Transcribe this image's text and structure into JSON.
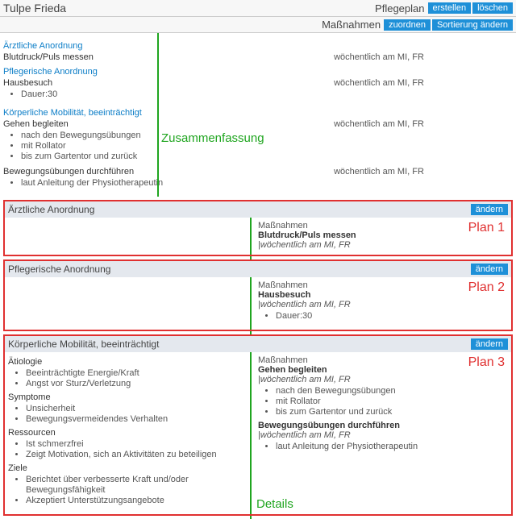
{
  "header": {
    "patient_name": "Tulpe Frieda",
    "plan_label": "Pflegeplan",
    "btn_create": "erstellen",
    "btn_delete": "löschen",
    "measures_label": "Maßnahmen",
    "btn_assign": "zuordnen",
    "btn_sort": "Sortierung ändern"
  },
  "summary": {
    "annotation": "Zusammenfassung",
    "sections": [
      {
        "title": "Ärztliche Anordnung",
        "items": [
          {
            "name": "Blutdruck/Puls messen",
            "schedule": "wöchentlich am MI, FR",
            "bullets": []
          }
        ]
      },
      {
        "title": "Pflegerische Anordnung",
        "items": [
          {
            "name": "Hausbesuch",
            "schedule": "wöchentlich am MI, FR",
            "bullets": [
              "Dauer:30"
            ]
          }
        ]
      },
      {
        "title": "Körperliche Mobilität, beeinträchtigt",
        "items": [
          {
            "name": "Gehen begleiten",
            "schedule": "wöchentlich am MI, FR",
            "bullets": [
              "nach den Bewegungsübungen",
              "mit Rollator",
              "bis zum Gartentor und zurück"
            ]
          },
          {
            "name": "Bewegungsübungen durchführen",
            "schedule": "wöchentlich am MI, FR",
            "bullets": [
              "laut Anleitung der Physiotherapeutin"
            ]
          }
        ]
      }
    ]
  },
  "details": {
    "annotation": "Details",
    "btn_edit": "ändern",
    "plans": [
      {
        "label": "Plan 1",
        "title": "Ärztliche Anordnung",
        "left_groups": [],
        "measures": [
          {
            "name": "Blutdruck/Puls messen",
            "schedule": "|wöchentlich am MI, FR",
            "bullets": []
          }
        ]
      },
      {
        "label": "Plan 2",
        "title": "Pflegerische Anordnung",
        "left_groups": [],
        "measures": [
          {
            "name": "Hausbesuch",
            "schedule": "|wöchentlich am MI, FR",
            "bullets": [
              "Dauer:30"
            ]
          }
        ]
      },
      {
        "label": "Plan 3",
        "title": "Körperliche Mobilität, beeinträchtigt",
        "left_groups": [
          {
            "heading": "Ätiologie",
            "items": [
              "Beeinträchtigte Energie/Kraft",
              "Angst vor Sturz/Verletzung"
            ]
          },
          {
            "heading": "Symptome",
            "items": [
              "Unsicherheit",
              "Bewegungsvermeidendes Verhalten"
            ]
          },
          {
            "heading": "Ressourcen",
            "items": [
              "Ist schmerzfrei",
              "Zeigt Motivation, sich an Aktivitäten zu beteiligen"
            ]
          },
          {
            "heading": "Ziele",
            "items": [
              "Berichtet über verbesserte Kraft und/oder Bewegungsfähigkeit",
              "Akzeptiert Unterstützungsangebote"
            ]
          }
        ],
        "measures": [
          {
            "name": "Gehen begleiten",
            "schedule": "|wöchentlich am MI, FR",
            "bullets": [
              "nach den Bewegungsübungen",
              "mit Rollator",
              "bis zum Gartentor und zurück"
            ]
          },
          {
            "name": "Bewegungsübungen durchführen",
            "schedule": "|wöchentlich am MI, FR",
            "bullets": [
              "laut Anleitung der Physiotherapeutin"
            ]
          }
        ]
      }
    ]
  }
}
